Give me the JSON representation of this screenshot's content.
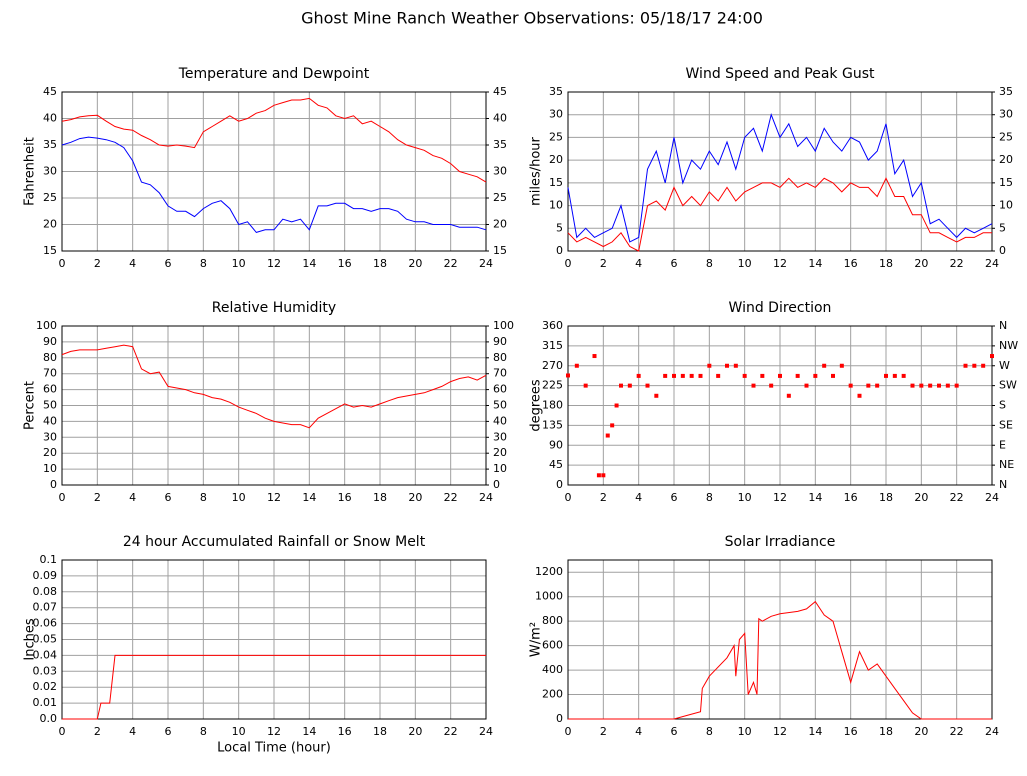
{
  "title": "Ghost Mine Ranch Weather Observations: 05/18/17 24:00",
  "chart_data": [
    {
      "type": "line",
      "title": "Temperature and Dewpoint",
      "ylabel": "Fahrenheit",
      "grid": true,
      "xlim": [
        0,
        24
      ],
      "xticks": [
        0,
        2,
        4,
        6,
        8,
        10,
        12,
        14,
        16,
        18,
        20,
        22,
        24
      ],
      "ylim": [
        15,
        45
      ],
      "yticks": [
        15,
        20,
        25,
        30,
        35,
        40,
        45
      ],
      "y2lim": [
        15,
        45
      ],
      "y2ticks": [
        15,
        20,
        25,
        30,
        35,
        40,
        45
      ],
      "x": [
        0,
        0.5,
        1,
        1.5,
        2,
        2.5,
        3,
        3.5,
        4,
        4.5,
        5,
        5.5,
        6,
        6.5,
        7,
        7.5,
        8,
        8.5,
        9,
        9.5,
        10,
        10.5,
        11,
        11.5,
        12,
        12.5,
        13,
        13.5,
        14,
        14.5,
        15,
        15.5,
        16,
        16.5,
        17,
        17.5,
        18,
        18.5,
        19,
        19.5,
        20,
        20.5,
        21,
        21.5,
        22,
        22.5,
        23,
        23.5,
        24
      ],
      "series": [
        {
          "color": "#ff0000",
          "values": [
            39.5,
            39.8,
            40.3,
            40.5,
            40.6,
            39.5,
            38.5,
            38,
            37.8,
            36.8,
            36,
            35,
            34.8,
            35,
            34.8,
            34.5,
            37.5,
            38.5,
            39.5,
            40.5,
            39.5,
            40,
            41,
            41.5,
            42.5,
            43,
            43.5,
            43.5,
            43.8,
            42.5,
            42,
            40.5,
            40,
            40.5,
            39,
            39.5,
            38.5,
            37.5,
            36,
            35,
            34.5,
            34,
            33,
            32.5,
            31.5,
            30,
            29.5,
            29,
            28
          ]
        },
        {
          "color": "#0000ff",
          "values": [
            35,
            35.5,
            36.2,
            36.5,
            36.3,
            36,
            35.5,
            34.5,
            32,
            28,
            27.5,
            26,
            23.5,
            22.5,
            22.5,
            21.5,
            23,
            24,
            24.5,
            23,
            20,
            20.5,
            18.5,
            19,
            19,
            21,
            20.5,
            21,
            19,
            23.5,
            23.5,
            24,
            24,
            23,
            23,
            22.5,
            23,
            23,
            22.5,
            21,
            20.5,
            20.5,
            20,
            20,
            20,
            19.5,
            19.5,
            19.5,
            19
          ]
        }
      ]
    },
    {
      "type": "line",
      "title": "Wind Speed and Peak Gust",
      "ylabel": "miles/hour",
      "grid": true,
      "xlim": [
        0,
        24
      ],
      "xticks": [
        0,
        2,
        4,
        6,
        8,
        10,
        12,
        14,
        16,
        18,
        20,
        22,
        24
      ],
      "ylim": [
        0,
        35
      ],
      "yticks": [
        0,
        5,
        10,
        15,
        20,
        25,
        30,
        35
      ],
      "y2lim": [
        0,
        35
      ],
      "y2ticks": [
        0,
        5,
        10,
        15,
        20,
        25,
        30,
        35
      ],
      "x": [
        0,
        0.5,
        1,
        1.5,
        2,
        2.5,
        3,
        3.5,
        4,
        4.5,
        5,
        5.5,
        6,
        6.5,
        7,
        7.5,
        8,
        8.5,
        9,
        9.5,
        10,
        10.5,
        11,
        11.5,
        12,
        12.5,
        13,
        13.5,
        14,
        14.5,
        15,
        15.5,
        16,
        16.5,
        17,
        17.5,
        18,
        18.5,
        19,
        19.5,
        20,
        20.5,
        21,
        21.5,
        22,
        22.5,
        23,
        23.5,
        24
      ],
      "series": [
        {
          "color": "#0000ff",
          "values": [
            14,
            3,
            5,
            3,
            4,
            5,
            10,
            2,
            3,
            18,
            22,
            15,
            25,
            15,
            20,
            18,
            22,
            19,
            24,
            18,
            25,
            27,
            22,
            30,
            25,
            28,
            23,
            25,
            22,
            27,
            24,
            22,
            25,
            24,
            20,
            22,
            28,
            17,
            20,
            12,
            15,
            6,
            7,
            5,
            3,
            5,
            4,
            5,
            6
          ]
        },
        {
          "color": "#ff0000",
          "values": [
            4,
            2,
            3,
            2,
            1,
            2,
            4,
            1,
            0,
            10,
            11,
            9,
            14,
            10,
            12,
            10,
            13,
            11,
            14,
            11,
            13,
            14,
            15,
            15,
            14,
            16,
            14,
            15,
            14,
            16,
            15,
            13,
            15,
            14,
            14,
            12,
            16,
            12,
            12,
            8,
            8,
            4,
            4,
            3,
            2,
            3,
            3,
            4,
            4
          ]
        }
      ]
    },
    {
      "type": "line",
      "title": "Relative Humidity",
      "ylabel": "Percent",
      "grid": true,
      "xlim": [
        0,
        24
      ],
      "xticks": [
        0,
        2,
        4,
        6,
        8,
        10,
        12,
        14,
        16,
        18,
        20,
        22,
        24
      ],
      "ylim": [
        0,
        100
      ],
      "yticks": [
        0,
        10,
        20,
        30,
        40,
        50,
        60,
        70,
        80,
        90,
        100
      ],
      "y2lim": [
        0,
        100
      ],
      "y2ticks": [
        0,
        10,
        20,
        30,
        40,
        50,
        60,
        70,
        80,
        90,
        100
      ],
      "x": [
        0,
        0.5,
        1,
        1.5,
        2,
        2.5,
        3,
        3.5,
        4,
        4.5,
        5,
        5.5,
        6,
        6.5,
        7,
        7.5,
        8,
        8.5,
        9,
        9.5,
        10,
        10.5,
        11,
        11.5,
        12,
        12.5,
        13,
        13.5,
        14,
        14.5,
        15,
        15.5,
        16,
        16.5,
        17,
        17.5,
        18,
        18.5,
        19,
        19.5,
        20,
        20.5,
        21,
        21.5,
        22,
        22.5,
        23,
        23.5,
        24
      ],
      "series": [
        {
          "color": "#ff0000",
          "values": [
            82,
            84,
            85,
            85,
            85,
            86,
            87,
            88,
            87,
            73,
            70,
            71,
            62,
            61,
            60,
            58,
            57,
            55,
            54,
            52,
            49,
            47,
            45,
            42,
            40,
            39,
            38,
            38,
            36,
            42,
            45,
            48,
            51,
            49,
            50,
            49,
            51,
            53,
            55,
            56,
            57,
            58,
            60,
            62,
            65,
            67,
            68,
            66,
            69
          ]
        }
      ]
    },
    {
      "type": "scatter",
      "title": "Wind Direction",
      "ylabel": "degrees",
      "grid": true,
      "xlim": [
        0,
        24
      ],
      "xticks": [
        0,
        2,
        4,
        6,
        8,
        10,
        12,
        14,
        16,
        18,
        20,
        22,
        24
      ],
      "ylim": [
        0,
        360
      ],
      "yticks": [
        0,
        45,
        90,
        135,
        180,
        225,
        270,
        315,
        360
      ],
      "y2lim": [
        0,
        360
      ],
      "y2ticks": [
        {
          "value": 0,
          "label": "N"
        },
        {
          "value": 45,
          "label": "NE"
        },
        {
          "value": 90,
          "label": "E"
        },
        {
          "value": 135,
          "label": "SE"
        },
        {
          "value": 180,
          "label": "S"
        },
        {
          "value": 225,
          "label": "SW"
        },
        {
          "value": 270,
          "label": "W"
        },
        {
          "value": 315,
          "label": "NW"
        },
        {
          "value": 360,
          "label": "N"
        }
      ],
      "x": [
        0,
        0.5,
        1,
        1.5,
        1.75,
        2,
        2.25,
        2.5,
        2.75,
        3,
        3.5,
        4,
        4.5,
        5,
        5.5,
        6,
        6.5,
        7,
        7.5,
        8,
        8.5,
        9,
        9.5,
        10,
        10.5,
        11,
        11.5,
        12,
        12.5,
        13,
        13.5,
        14,
        14.5,
        15,
        15.5,
        16,
        16.5,
        17,
        17.5,
        18,
        18.5,
        19,
        19.5,
        20,
        20.5,
        21,
        21.5,
        22,
        22.5,
        23,
        23.5,
        24
      ],
      "series": [
        {
          "color": "#ff0000",
          "values": [
            248,
            270,
            225,
            292,
            22,
            22,
            112,
            135,
            180,
            225,
            225,
            247,
            225,
            202,
            247,
            247,
            247,
            247,
            247,
            270,
            247,
            270,
            270,
            247,
            225,
            247,
            225,
            247,
            202,
            247,
            225,
            247,
            270,
            247,
            270,
            225,
            202,
            225,
            225,
            247,
            247,
            247,
            225,
            225,
            225,
            225,
            225,
            225,
            270,
            270,
            270,
            292
          ]
        }
      ]
    },
    {
      "type": "line",
      "title": "24 hour Accumulated Rainfall or Snow Melt",
      "ylabel": "Inches",
      "xlabel": "Local Time (hour)",
      "grid": true,
      "xlim": [
        0,
        24
      ],
      "xticks": [
        0,
        2,
        4,
        6,
        8,
        10,
        12,
        14,
        16,
        18,
        20,
        22,
        24
      ],
      "ylim": [
        0,
        0.1
      ],
      "yticks": [
        {
          "value": 0,
          "label": "0.0"
        },
        0.01,
        0.02,
        0.03,
        0.04,
        0.05,
        0.06,
        0.07,
        0.08,
        0.09,
        0.1
      ],
      "x": [
        0,
        2,
        2.2,
        2.7,
        3,
        24
      ],
      "series": [
        {
          "color": "#ff0000",
          "values": [
            0,
            0,
            0.01,
            0.01,
            0.04,
            0.04
          ]
        }
      ]
    },
    {
      "type": "line",
      "title": "Solar Irradiance",
      "ylabel": "W/m²",
      "grid": true,
      "xlim": [
        0,
        24
      ],
      "xticks": [
        0,
        2,
        4,
        6,
        8,
        10,
        12,
        14,
        16,
        18,
        20,
        22,
        24
      ],
      "ylim": [
        0,
        1300
      ],
      "yticks": [
        0,
        200,
        400,
        600,
        800,
        1000,
        1200
      ],
      "x": [
        0,
        6,
        7,
        7.5,
        7.6,
        8,
        9,
        9.4,
        9.5,
        9.7,
        10,
        10.2,
        10.5,
        10.7,
        10.8,
        11,
        11.5,
        12,
        13,
        13.5,
        14,
        14.5,
        15,
        15.5,
        16,
        16.5,
        17,
        17.5,
        18,
        18.5,
        19,
        19.5,
        20,
        24
      ],
      "series": [
        {
          "color": "#ff0000",
          "values": [
            0,
            0,
            40,
            60,
            250,
            350,
            500,
            600,
            350,
            650,
            700,
            200,
            300,
            200,
            820,
            800,
            840,
            860,
            880,
            900,
            960,
            850,
            800,
            550,
            300,
            550,
            400,
            450,
            350,
            250,
            150,
            50,
            0,
            0
          ]
        }
      ]
    }
  ]
}
